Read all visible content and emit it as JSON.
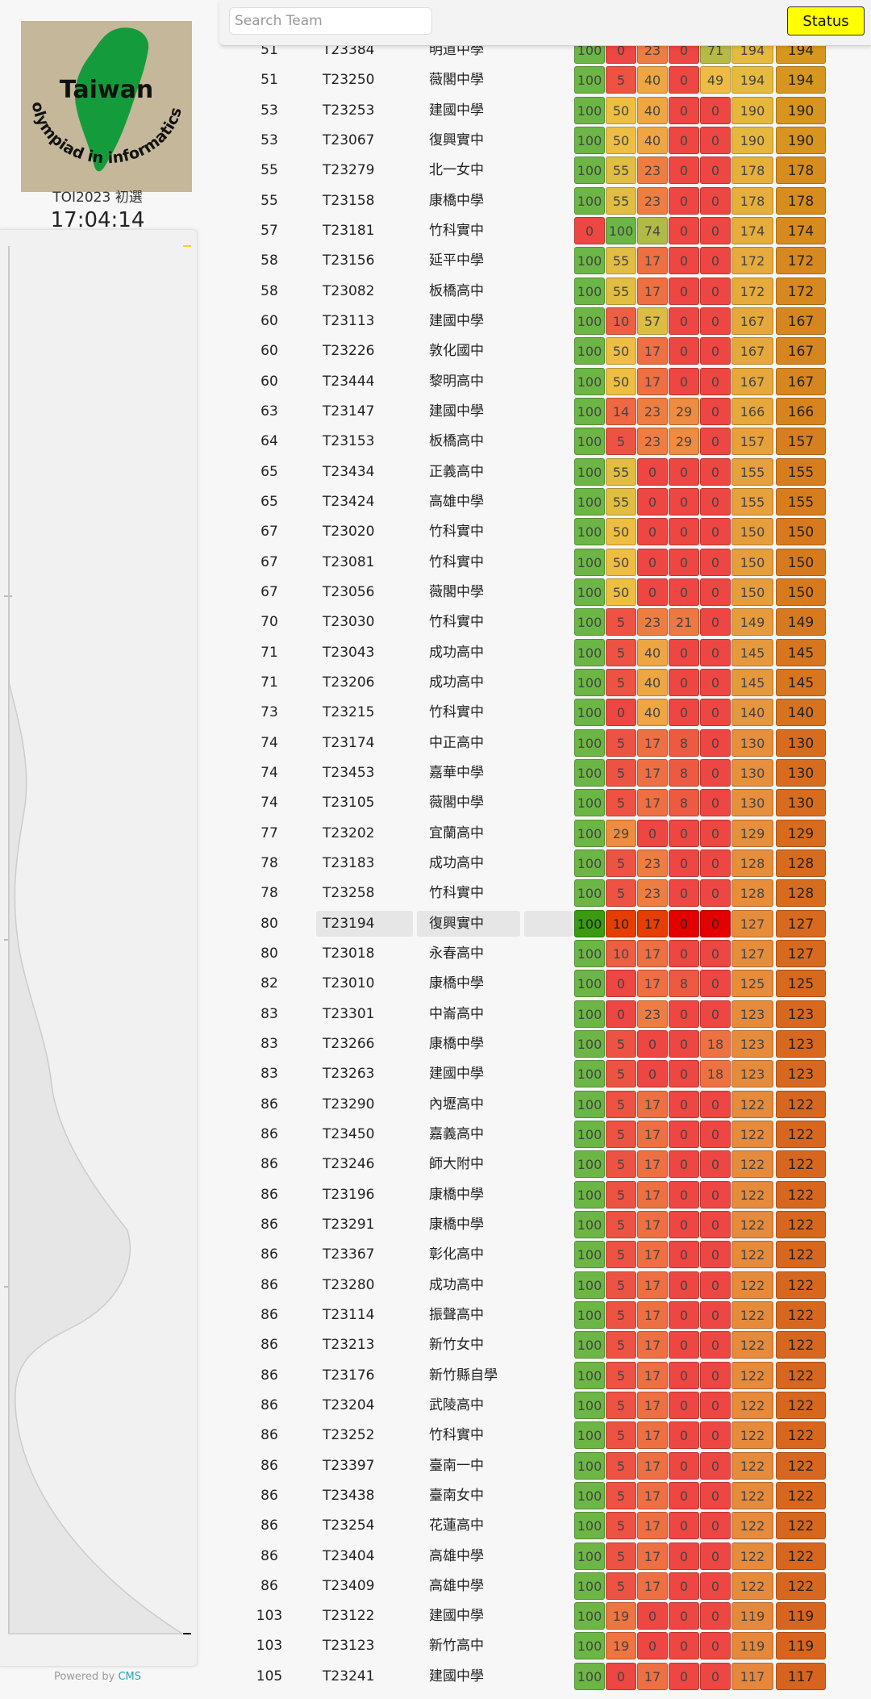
{
  "sidebar": {
    "logo_line1": "Taiwan",
    "logo_line2": "olympiad in informatics",
    "contest_name": "TOI2023 初選",
    "clock": "17:04:14",
    "powered_by": "Powered by",
    "powered_link": "CMS"
  },
  "topbar": {
    "search_placeholder": "Search Team",
    "status_label": "Status"
  },
  "highlighted_team": "T23194",
  "ranking": [
    [
      "51",
      "T23384",
      "明道中學",
      [
        "100",
        "0",
        "23",
        "0",
        "71"
      ],
      "194",
      "194"
    ],
    [
      "51",
      "T23250",
      "薇閣中學",
      [
        "100",
        "5",
        "40",
        "0",
        "49"
      ],
      "194",
      "194"
    ],
    [
      "53",
      "T23253",
      "建國中學",
      [
        "100",
        "50",
        "40",
        "0",
        "0"
      ],
      "190",
      "190"
    ],
    [
      "53",
      "T23067",
      "復興實中",
      [
        "100",
        "50",
        "40",
        "0",
        "0"
      ],
      "190",
      "190"
    ],
    [
      "55",
      "T23279",
      "北一女中",
      [
        "100",
        "55",
        "23",
        "0",
        "0"
      ],
      "178",
      "178"
    ],
    [
      "55",
      "T23158",
      "康橋中學",
      [
        "100",
        "55",
        "23",
        "0",
        "0"
      ],
      "178",
      "178"
    ],
    [
      "57",
      "T23181",
      "竹科實中",
      [
        "0",
        "100",
        "74",
        "0",
        "0"
      ],
      "174",
      "174"
    ],
    [
      "58",
      "T23156",
      "延平中學",
      [
        "100",
        "55",
        "17",
        "0",
        "0"
      ],
      "172",
      "172"
    ],
    [
      "58",
      "T23082",
      "板橋高中",
      [
        "100",
        "55",
        "17",
        "0",
        "0"
      ],
      "172",
      "172"
    ],
    [
      "60",
      "T23113",
      "建國中學",
      [
        "100",
        "10",
        "57",
        "0",
        "0"
      ],
      "167",
      "167"
    ],
    [
      "60",
      "T23226",
      "敦化國中",
      [
        "100",
        "50",
        "17",
        "0",
        "0"
      ],
      "167",
      "167"
    ],
    [
      "60",
      "T23444",
      "黎明高中",
      [
        "100",
        "50",
        "17",
        "0",
        "0"
      ],
      "167",
      "167"
    ],
    [
      "63",
      "T23147",
      "建國中學",
      [
        "100",
        "14",
        "23",
        "29",
        "0"
      ],
      "166",
      "166"
    ],
    [
      "64",
      "T23153",
      "板橋高中",
      [
        "100",
        "5",
        "23",
        "29",
        "0"
      ],
      "157",
      "157"
    ],
    [
      "65",
      "T23434",
      "正義高中",
      [
        "100",
        "55",
        "0",
        "0",
        "0"
      ],
      "155",
      "155"
    ],
    [
      "65",
      "T23424",
      "高雄中學",
      [
        "100",
        "55",
        "0",
        "0",
        "0"
      ],
      "155",
      "155"
    ],
    [
      "67",
      "T23020",
      "竹科實中",
      [
        "100",
        "50",
        "0",
        "0",
        "0"
      ],
      "150",
      "150"
    ],
    [
      "67",
      "T23081",
      "竹科實中",
      [
        "100",
        "50",
        "0",
        "0",
        "0"
      ],
      "150",
      "150"
    ],
    [
      "67",
      "T23056",
      "薇閣中學",
      [
        "100",
        "50",
        "0",
        "0",
        "0"
      ],
      "150",
      "150"
    ],
    [
      "70",
      "T23030",
      "竹科實中",
      [
        "100",
        "5",
        "23",
        "21",
        "0"
      ],
      "149",
      "149"
    ],
    [
      "71",
      "T23043",
      "成功高中",
      [
        "100",
        "5",
        "40",
        "0",
        "0"
      ],
      "145",
      "145"
    ],
    [
      "71",
      "T23206",
      "成功高中",
      [
        "100",
        "5",
        "40",
        "0",
        "0"
      ],
      "145",
      "145"
    ],
    [
      "73",
      "T23215",
      "竹科實中",
      [
        "100",
        "0",
        "40",
        "0",
        "0"
      ],
      "140",
      "140"
    ],
    [
      "74",
      "T23174",
      "中正高中",
      [
        "100",
        "5",
        "17",
        "8",
        "0"
      ],
      "130",
      "130"
    ],
    [
      "74",
      "T23453",
      "嘉華中學",
      [
        "100",
        "5",
        "17",
        "8",
        "0"
      ],
      "130",
      "130"
    ],
    [
      "74",
      "T23105",
      "薇閣中學",
      [
        "100",
        "5",
        "17",
        "8",
        "0"
      ],
      "130",
      "130"
    ],
    [
      "77",
      "T23202",
      "宜蘭高中",
      [
        "100",
        "29",
        "0",
        "0",
        "0"
      ],
      "129",
      "129"
    ],
    [
      "78",
      "T23183",
      "成功高中",
      [
        "100",
        "5",
        "23",
        "0",
        "0"
      ],
      "128",
      "128"
    ],
    [
      "78",
      "T23258",
      "竹科實中",
      [
        "100",
        "5",
        "23",
        "0",
        "0"
      ],
      "128",
      "128"
    ],
    [
      "80",
      "T23194",
      "復興實中",
      [
        "100",
        "10",
        "17",
        "0",
        "0"
      ],
      "127",
      "127"
    ],
    [
      "80",
      "T23018",
      "永春高中",
      [
        "100",
        "10",
        "17",
        "0",
        "0"
      ],
      "127",
      "127"
    ],
    [
      "82",
      "T23010",
      "康橋中學",
      [
        "100",
        "0",
        "17",
        "8",
        "0"
      ],
      "125",
      "125"
    ],
    [
      "83",
      "T23301",
      "中崙高中",
      [
        "100",
        "0",
        "23",
        "0",
        "0"
      ],
      "123",
      "123"
    ],
    [
      "83",
      "T23266",
      "康橋中學",
      [
        "100",
        "5",
        "0",
        "0",
        "18"
      ],
      "123",
      "123"
    ],
    [
      "83",
      "T23263",
      "建國中學",
      [
        "100",
        "5",
        "0",
        "0",
        "18"
      ],
      "123",
      "123"
    ],
    [
      "86",
      "T23290",
      "內壢高中",
      [
        "100",
        "5",
        "17",
        "0",
        "0"
      ],
      "122",
      "122"
    ],
    [
      "86",
      "T23450",
      "嘉義高中",
      [
        "100",
        "5",
        "17",
        "0",
        "0"
      ],
      "122",
      "122"
    ],
    [
      "86",
      "T23246",
      "師大附中",
      [
        "100",
        "5",
        "17",
        "0",
        "0"
      ],
      "122",
      "122"
    ],
    [
      "86",
      "T23196",
      "康橋中學",
      [
        "100",
        "5",
        "17",
        "0",
        "0"
      ],
      "122",
      "122"
    ],
    [
      "86",
      "T23291",
      "康橋中學",
      [
        "100",
        "5",
        "17",
        "0",
        "0"
      ],
      "122",
      "122"
    ],
    [
      "86",
      "T23367",
      "彰化高中",
      [
        "100",
        "5",
        "17",
        "0",
        "0"
      ],
      "122",
      "122"
    ],
    [
      "86",
      "T23280",
      "成功高中",
      [
        "100",
        "5",
        "17",
        "0",
        "0"
      ],
      "122",
      "122"
    ],
    [
      "86",
      "T23114",
      "振聲高中",
      [
        "100",
        "5",
        "17",
        "0",
        "0"
      ],
      "122",
      "122"
    ],
    [
      "86",
      "T23213",
      "新竹女中",
      [
        "100",
        "5",
        "17",
        "0",
        "0"
      ],
      "122",
      "122"
    ],
    [
      "86",
      "T23176",
      "新竹縣自學",
      [
        "100",
        "5",
        "17",
        "0",
        "0"
      ],
      "122",
      "122"
    ],
    [
      "86",
      "T23204",
      "武陵高中",
      [
        "100",
        "5",
        "17",
        "0",
        "0"
      ],
      "122",
      "122"
    ],
    [
      "86",
      "T23252",
      "竹科實中",
      [
        "100",
        "5",
        "17",
        "0",
        "0"
      ],
      "122",
      "122"
    ],
    [
      "86",
      "T23397",
      "臺南一中",
      [
        "100",
        "5",
        "17",
        "0",
        "0"
      ],
      "122",
      "122"
    ],
    [
      "86",
      "T23438",
      "臺南女中",
      [
        "100",
        "5",
        "17",
        "0",
        "0"
      ],
      "122",
      "122"
    ],
    [
      "86",
      "T23254",
      "花蓮高中",
      [
        "100",
        "5",
        "17",
        "0",
        "0"
      ],
      "122",
      "122"
    ],
    [
      "86",
      "T23404",
      "高雄中學",
      [
        "100",
        "5",
        "17",
        "0",
        "0"
      ],
      "122",
      "122"
    ],
    [
      "86",
      "T23409",
      "高雄中學",
      [
        "100",
        "5",
        "17",
        "0",
        "0"
      ],
      "122",
      "122"
    ],
    [
      "103",
      "T23122",
      "建國中學",
      [
        "100",
        "19",
        "0",
        "0",
        "0"
      ],
      "119",
      "119"
    ],
    [
      "103",
      "T23123",
      "新竹高中",
      [
        "100",
        "19",
        "0",
        "0",
        "0"
      ],
      "119",
      "119"
    ],
    [
      "105",
      "T23241",
      "建國中學",
      [
        "100",
        "0",
        "17",
        "0",
        "0"
      ],
      "117",
      "117"
    ]
  ]
}
